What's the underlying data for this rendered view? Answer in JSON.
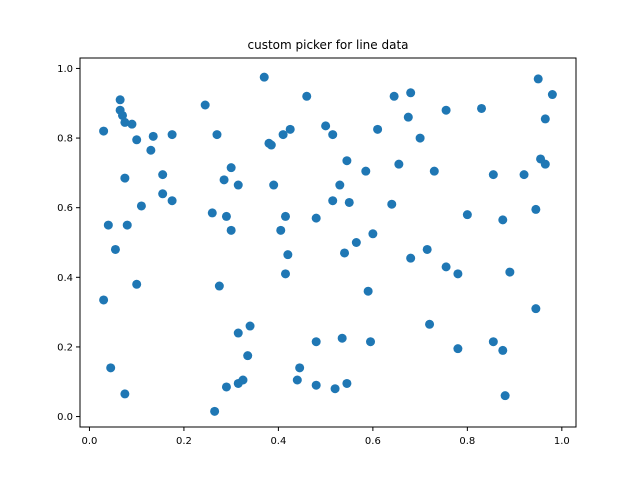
{
  "chart_data": {
    "type": "scatter",
    "title": "custom picker for line data",
    "xlabel": "",
    "ylabel": "",
    "xlim": [
      -0.02,
      1.03
    ],
    "ylim": [
      -0.03,
      1.03
    ],
    "xticks": [
      0.0,
      0.2,
      0.4,
      0.6,
      0.8,
      1.0
    ],
    "xtick_labels": [
      "0.0",
      "0.2",
      "0.4",
      "0.6",
      "0.8",
      "1.0"
    ],
    "yticks": [
      0.0,
      0.2,
      0.4,
      0.6,
      0.8,
      1.0
    ],
    "ytick_labels": [
      "0.0",
      "0.2",
      "0.4",
      "0.6",
      "0.8",
      "1.0"
    ],
    "grid": false,
    "marker_color": "#1f77b4",
    "series": [
      {
        "points": [
          [
            0.03,
            0.82
          ],
          [
            0.03,
            0.335
          ],
          [
            0.04,
            0.55
          ],
          [
            0.045,
            0.14
          ],
          [
            0.055,
            0.48
          ],
          [
            0.065,
            0.91
          ],
          [
            0.065,
            0.88
          ],
          [
            0.07,
            0.865
          ],
          [
            0.075,
            0.845
          ],
          [
            0.075,
            0.685
          ],
          [
            0.075,
            0.065
          ],
          [
            0.08,
            0.55
          ],
          [
            0.09,
            0.84
          ],
          [
            0.1,
            0.795
          ],
          [
            0.1,
            0.38
          ],
          [
            0.11,
            0.605
          ],
          [
            0.13,
            0.765
          ],
          [
            0.135,
            0.805
          ],
          [
            0.155,
            0.695
          ],
          [
            0.155,
            0.64
          ],
          [
            0.175,
            0.81
          ],
          [
            0.175,
            0.62
          ],
          [
            0.245,
            0.895
          ],
          [
            0.26,
            0.585
          ],
          [
            0.265,
            0.015
          ],
          [
            0.27,
            0.81
          ],
          [
            0.275,
            0.375
          ],
          [
            0.285,
            0.68
          ],
          [
            0.29,
            0.085
          ],
          [
            0.29,
            0.575
          ],
          [
            0.3,
            0.715
          ],
          [
            0.3,
            0.535
          ],
          [
            0.315,
            0.665
          ],
          [
            0.315,
            0.24
          ],
          [
            0.315,
            0.095
          ],
          [
            0.325,
            0.105
          ],
          [
            0.335,
            0.175
          ],
          [
            0.34,
            0.26
          ],
          [
            0.37,
            0.975
          ],
          [
            0.38,
            0.785
          ],
          [
            0.385,
            0.78
          ],
          [
            0.39,
            0.665
          ],
          [
            0.405,
            0.535
          ],
          [
            0.41,
            0.81
          ],
          [
            0.415,
            0.575
          ],
          [
            0.415,
            0.41
          ],
          [
            0.42,
            0.465
          ],
          [
            0.425,
            0.825
          ],
          [
            0.44,
            0.105
          ],
          [
            0.445,
            0.14
          ],
          [
            0.46,
            0.92
          ],
          [
            0.48,
            0.57
          ],
          [
            0.48,
            0.215
          ],
          [
            0.48,
            0.09
          ],
          [
            0.5,
            0.835
          ],
          [
            0.515,
            0.81
          ],
          [
            0.515,
            0.62
          ],
          [
            0.52,
            0.08
          ],
          [
            0.53,
            0.665
          ],
          [
            0.535,
            0.225
          ],
          [
            0.54,
            0.47
          ],
          [
            0.545,
            0.735
          ],
          [
            0.545,
            0.095
          ],
          [
            0.55,
            0.615
          ],
          [
            0.565,
            0.5
          ],
          [
            0.585,
            0.705
          ],
          [
            0.59,
            0.36
          ],
          [
            0.595,
            0.215
          ],
          [
            0.6,
            0.525
          ],
          [
            0.61,
            0.825
          ],
          [
            0.64,
            0.61
          ],
          [
            0.645,
            0.92
          ],
          [
            0.655,
            0.725
          ],
          [
            0.675,
            0.86
          ],
          [
            0.68,
            0.93
          ],
          [
            0.68,
            0.455
          ],
          [
            0.7,
            0.8
          ],
          [
            0.715,
            0.48
          ],
          [
            0.72,
            0.265
          ],
          [
            0.73,
            0.705
          ],
          [
            0.755,
            0.88
          ],
          [
            0.755,
            0.43
          ],
          [
            0.78,
            0.41
          ],
          [
            0.78,
            0.195
          ],
          [
            0.8,
            0.58
          ],
          [
            0.83,
            0.885
          ],
          [
            0.855,
            0.695
          ],
          [
            0.855,
            0.215
          ],
          [
            0.875,
            0.565
          ],
          [
            0.875,
            0.19
          ],
          [
            0.88,
            0.06
          ],
          [
            0.89,
            0.415
          ],
          [
            0.92,
            0.695
          ],
          [
            0.945,
            0.595
          ],
          [
            0.945,
            0.31
          ],
          [
            0.95,
            0.97
          ],
          [
            0.955,
            0.74
          ],
          [
            0.965,
            0.855
          ],
          [
            0.965,
            0.725
          ],
          [
            0.98,
            0.925
          ]
        ]
      }
    ]
  }
}
